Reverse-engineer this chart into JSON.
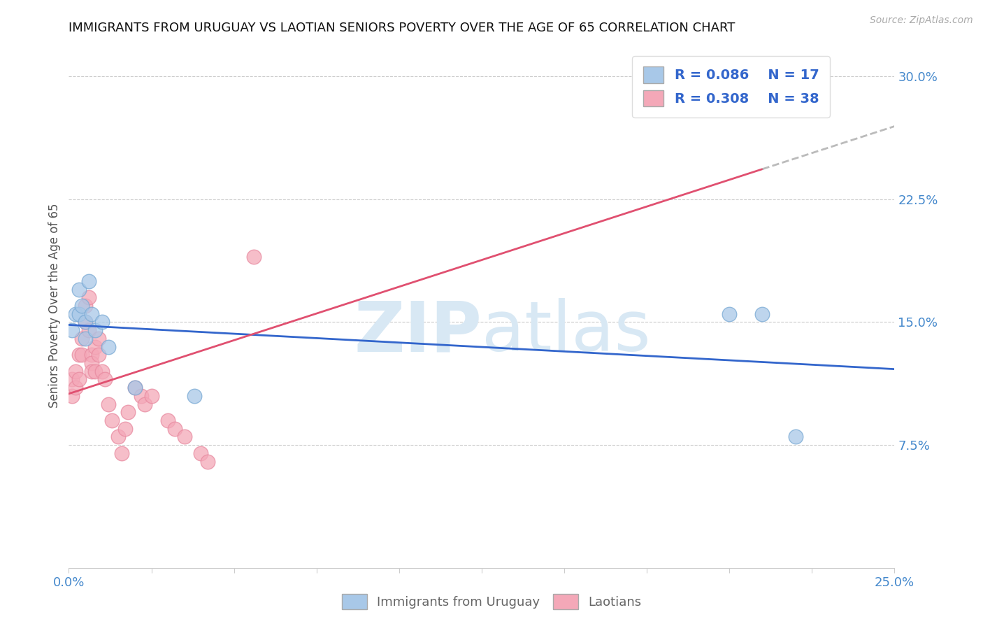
{
  "title": "IMMIGRANTS FROM URUGUAY VS LAOTIAN SENIORS POVERTY OVER THE AGE OF 65 CORRELATION CHART",
  "source_text": "Source: ZipAtlas.com",
  "ylabel": "Seniors Poverty Over the Age of 65",
  "xlim": [
    0.0,
    0.25
  ],
  "ylim": [
    0.0,
    0.32
  ],
  "yticks": [
    0.0,
    0.075,
    0.15,
    0.225,
    0.3
  ],
  "ytick_labels": [
    "",
    "7.5%",
    "15.0%",
    "22.5%",
    "30.0%"
  ],
  "xtick_positions": [
    0.0,
    0.025,
    0.05,
    0.075,
    0.1,
    0.125,
    0.15,
    0.175,
    0.2,
    0.225,
    0.25
  ],
  "xlabels_show": {
    "0.0": "0.0%",
    "0.25": "25.0%"
  },
  "uruguay_R": "0.086",
  "uruguay_N": "17",
  "laotian_R": "0.308",
  "laotian_N": "38",
  "uruguay_color": "#a8c8e8",
  "laotian_color": "#f4a8b8",
  "uruguay_edge_color": "#7aaad4",
  "laotian_edge_color": "#e88aa0",
  "uruguay_line_color": "#3366cc",
  "laotian_line_color": "#e05070",
  "watermark_color": "#d8e8f4",
  "legend_text_color": "#3366cc",
  "tick_label_color": "#4488cc",
  "uruguay_points_x": [
    0.001,
    0.002,
    0.003,
    0.003,
    0.004,
    0.005,
    0.005,
    0.006,
    0.007,
    0.008,
    0.01,
    0.012,
    0.02,
    0.038,
    0.2,
    0.21,
    0.22
  ],
  "uruguay_points_y": [
    0.145,
    0.155,
    0.155,
    0.17,
    0.16,
    0.15,
    0.14,
    0.175,
    0.155,
    0.145,
    0.15,
    0.135,
    0.11,
    0.105,
    0.155,
    0.155,
    0.08
  ],
  "laotian_points_x": [
    0.001,
    0.001,
    0.002,
    0.002,
    0.003,
    0.003,
    0.004,
    0.004,
    0.005,
    0.005,
    0.006,
    0.006,
    0.007,
    0.007,
    0.007,
    0.008,
    0.008,
    0.009,
    0.009,
    0.01,
    0.011,
    0.012,
    0.013,
    0.015,
    0.016,
    0.017,
    0.018,
    0.02,
    0.022,
    0.023,
    0.025,
    0.03,
    0.032,
    0.035,
    0.04,
    0.042,
    0.056,
    0.21
  ],
  "laotian_points_y": [
    0.115,
    0.105,
    0.12,
    0.11,
    0.13,
    0.115,
    0.14,
    0.13,
    0.16,
    0.15,
    0.165,
    0.145,
    0.13,
    0.125,
    0.12,
    0.135,
    0.12,
    0.14,
    0.13,
    0.12,
    0.115,
    0.1,
    0.09,
    0.08,
    0.07,
    0.085,
    0.095,
    0.11,
    0.105,
    0.1,
    0.105,
    0.09,
    0.085,
    0.08,
    0.07,
    0.065,
    0.19,
    0.285
  ]
}
